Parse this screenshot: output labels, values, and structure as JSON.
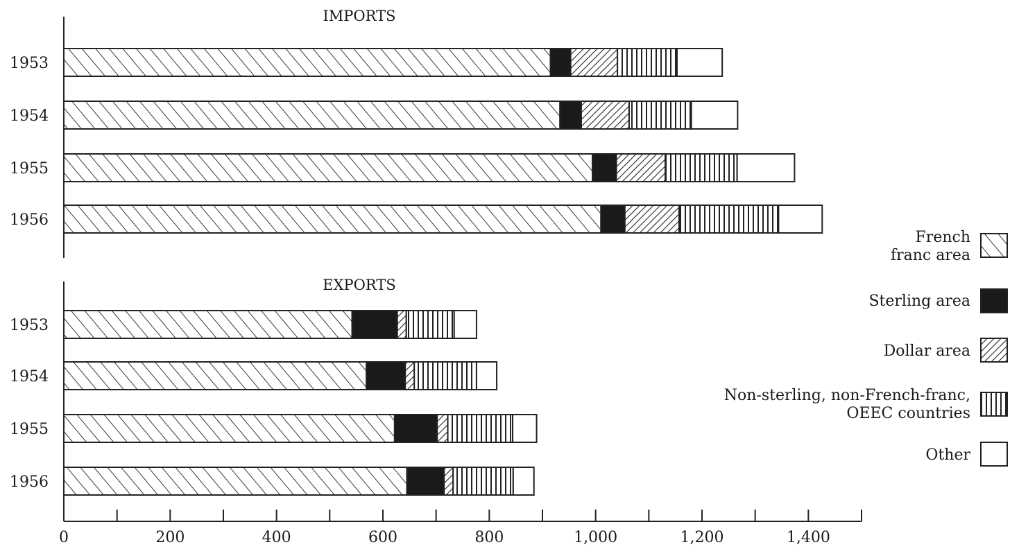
{
  "chart_data": {
    "type": "bar",
    "orientation": "horizontal",
    "stacked": true,
    "xlim": [
      0,
      1500
    ],
    "xticks": [
      0,
      100,
      200,
      300,
      400,
      500,
      600,
      700,
      800,
      900,
      1000,
      1100,
      1200,
      1300,
      1400,
      1500
    ],
    "xtick_labels": [
      "0",
      "200",
      "400",
      "600",
      "800",
      "1,000",
      "1,200",
      "1,400"
    ],
    "xtick_label_values": [
      0,
      200,
      400,
      600,
      800,
      1000,
      1200,
      1400
    ],
    "legend_position": "right",
    "legend": [
      {
        "name": "French\nfranc area",
        "pattern": "diagonal-forward"
      },
      {
        "name": "Sterling area",
        "pattern": "solid"
      },
      {
        "name": "Dollar area",
        "pattern": "diagonal-back"
      },
      {
        "name": "Non-sterling, non-French-franc,\nOEEC countries",
        "pattern": "vertical"
      },
      {
        "name": "Other",
        "pattern": "empty"
      }
    ],
    "panels": [
      {
        "title": "IMPORTS",
        "categories": [
          "1953",
          "1954",
          "1955",
          "1956"
        ],
        "series": [
          {
            "name": "French franc area",
            "values": [
              915,
              933,
              994,
              1010
            ]
          },
          {
            "name": "Sterling area",
            "values": [
              38,
              40,
              45,
              45
            ]
          },
          {
            "name": "Dollar area",
            "values": [
              88,
              90,
              92,
              102
            ]
          },
          {
            "name": "Non-sterling, non-French-franc, OEEC countries",
            "values": [
              112,
              117,
              135,
              187
            ]
          },
          {
            "name": "Other",
            "values": [
              85,
              87,
              108,
              82
            ]
          }
        ]
      },
      {
        "title": "EXPORTS",
        "categories": [
          "1953",
          "1954",
          "1955",
          "1956"
        ],
        "series": [
          {
            "name": "French franc area",
            "values": [
              542,
              569,
              622,
              645
            ]
          },
          {
            "name": "Sterling area",
            "values": [
              85,
              73,
              80,
              70
            ]
          },
          {
            "name": "Dollar area",
            "values": [
              17,
              17,
              20,
              17
            ]
          },
          {
            "name": "Non-sterling, non-French-franc, OEEC countries",
            "values": [
              90,
              117,
              122,
              113
            ]
          },
          {
            "name": "Other",
            "values": [
              42,
              38,
              45,
              39
            ]
          }
        ]
      }
    ]
  }
}
